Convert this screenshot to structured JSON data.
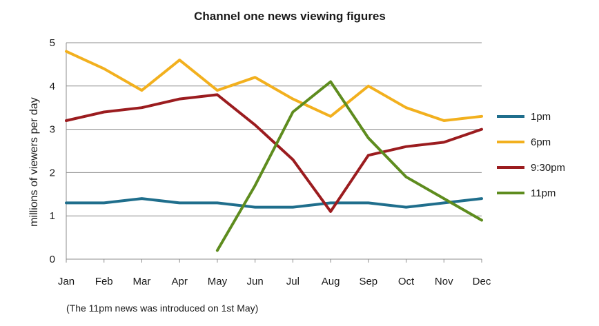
{
  "chart_data": {
    "type": "line",
    "title": "Channel one news viewing figures",
    "xlabel": "",
    "ylabel": "millions of viewers per day",
    "categories": [
      "Jan",
      "Feb",
      "Mar",
      "Apr",
      "May",
      "Jun",
      "Jul",
      "Aug",
      "Sep",
      "Oct",
      "Nov",
      "Dec"
    ],
    "ylim": [
      0,
      5
    ],
    "yticks": [
      "0",
      "1",
      "2",
      "3",
      "4",
      "5"
    ],
    "grid": true,
    "legend_position": "right",
    "series": [
      {
        "name": "1pm",
        "color": "#1f6e8c",
        "values": [
          1.3,
          1.3,
          1.4,
          1.3,
          1.3,
          1.2,
          1.2,
          1.3,
          1.3,
          1.2,
          1.3,
          1.4
        ]
      },
      {
        "name": "6pm",
        "color": "#f2b01e",
        "values": [
          4.8,
          4.4,
          3.9,
          4.6,
          3.9,
          4.2,
          3.7,
          3.3,
          4.0,
          3.5,
          3.2,
          3.3
        ]
      },
      {
        "name": "9:30pm",
        "color": "#9b1c1f",
        "values": [
          3.2,
          3.4,
          3.5,
          3.7,
          3.8,
          3.1,
          2.3,
          1.1,
          2.4,
          2.6,
          2.7,
          3.0
        ]
      },
      {
        "name": "11pm",
        "color": "#5e8c1e",
        "values": [
          null,
          null,
          null,
          null,
          0.2,
          1.7,
          3.4,
          4.1,
          2.8,
          1.9,
          1.4,
          0.9
        ]
      }
    ],
    "annotation": "(The 11pm news was introduced on 1st May)"
  }
}
